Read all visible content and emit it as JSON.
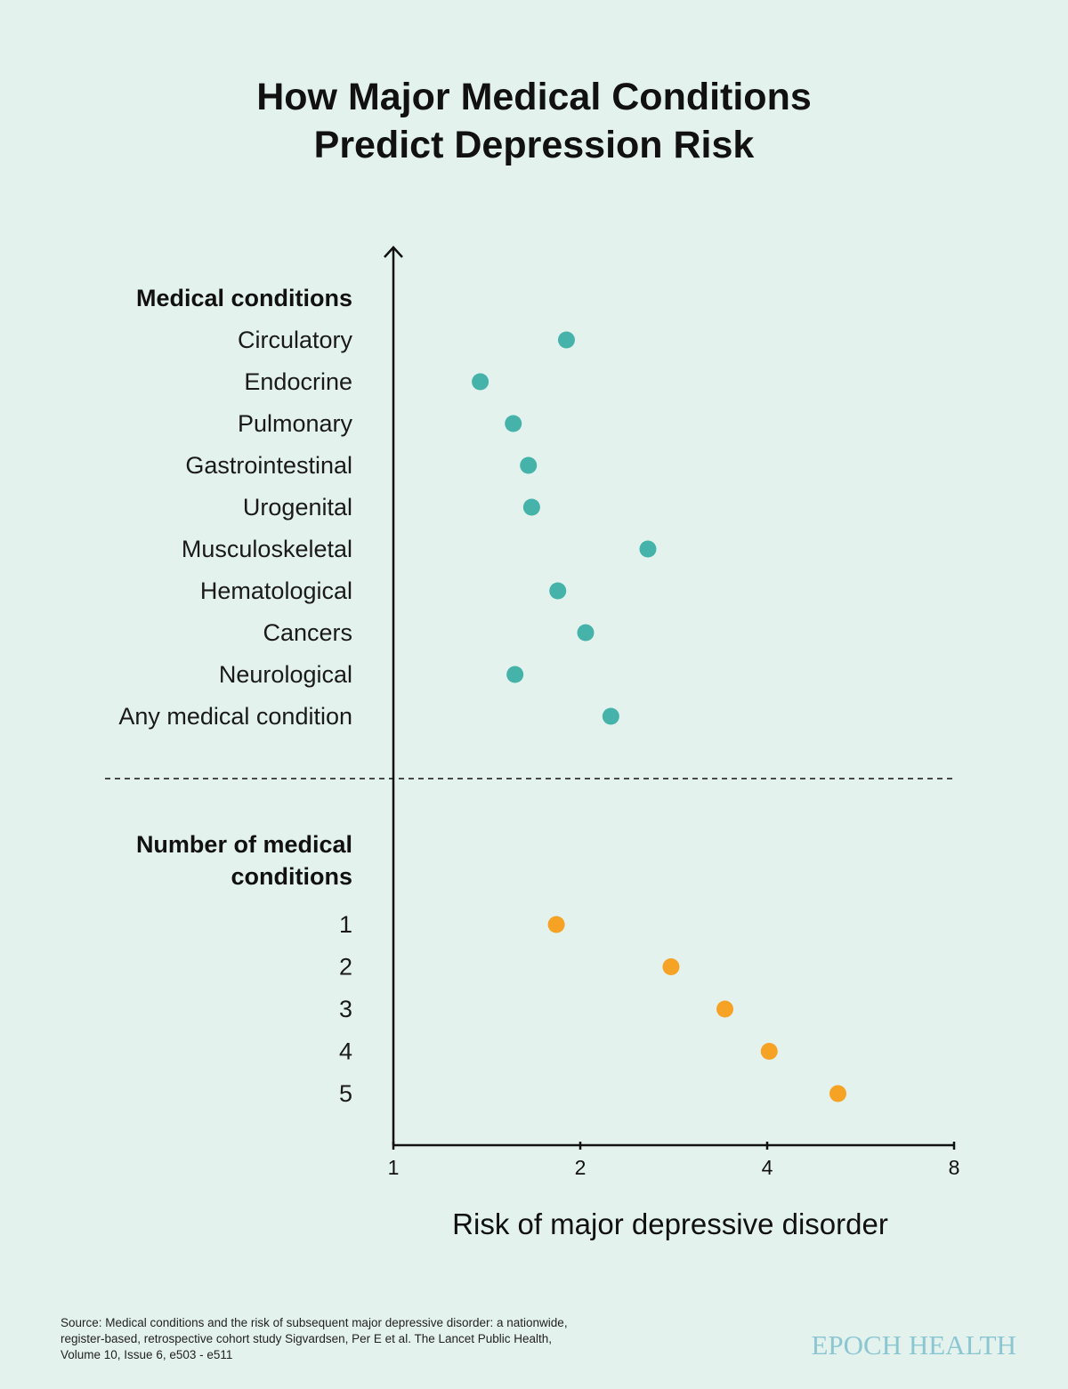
{
  "header": {
    "title_line1": "How Major Medical Conditions",
    "title_line2": "Predict Depression Risk"
  },
  "chart_data": {
    "type": "scatter",
    "title": "How Major Medical Conditions Predict Depression Risk",
    "xlabel": "Risk of major depressive disorder",
    "x_scale": "log2",
    "xlim": [
      1,
      8
    ],
    "x_ticks": [
      "1",
      "2",
      "4",
      "8"
    ],
    "colors": {
      "conditions": "#45b3a9",
      "count": "#f5a225"
    },
    "groups": [
      {
        "name": "Medical conditions",
        "color_key": "conditions",
        "points": [
          {
            "label": "Circulatory",
            "value": 1.9
          },
          {
            "label": "Endocrine",
            "value": 1.38
          },
          {
            "label": "Pulmonary",
            "value": 1.56
          },
          {
            "label": "Gastrointestinal",
            "value": 1.65
          },
          {
            "label": "Urogenital",
            "value": 1.67
          },
          {
            "label": "Musculoskeletal",
            "value": 2.57
          },
          {
            "label": "Hematological",
            "value": 1.84
          },
          {
            "label": "Cancers",
            "value": 2.04
          },
          {
            "label": "Neurological",
            "value": 1.57
          },
          {
            "label": "Any medical condition",
            "value": 2.24
          }
        ]
      },
      {
        "name": "Number of medical conditions",
        "name_lines": [
          "Number of medical",
          "conditions"
        ],
        "color_key": "count",
        "points": [
          {
            "label": "1",
            "value": 1.83
          },
          {
            "label": "2",
            "value": 2.8
          },
          {
            "label": "3",
            "value": 3.42
          },
          {
            "label": "4",
            "value": 4.03
          },
          {
            "label": "5",
            "value": 5.2
          }
        ]
      }
    ]
  },
  "footer": {
    "source_line1": "Source: Medical conditions and the risk of subsequent major depressive disorder: a nationwide,",
    "source_line2": "register-based, retrospective cohort study Sigvardsen, Per E et al. The Lancet Public Health,",
    "source_line3": "Volume 10, Issue 6, e503 - e511",
    "brand": "EPOCH HEALTH"
  }
}
